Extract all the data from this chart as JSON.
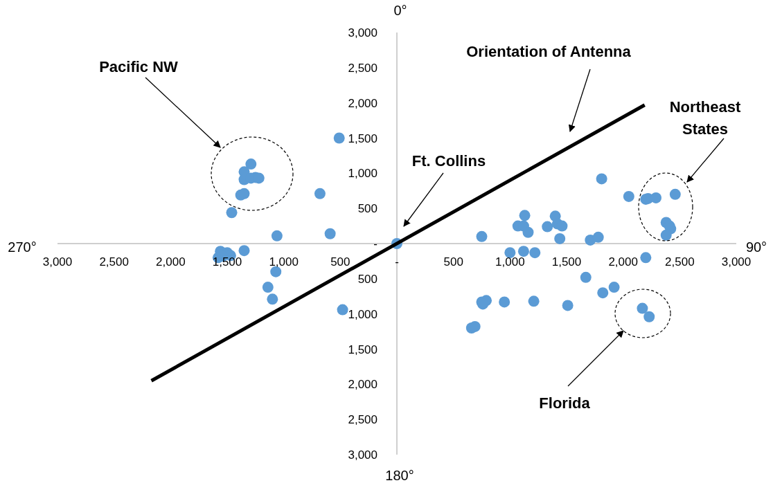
{
  "chart_data": {
    "type": "scatter",
    "xlim": [
      -3000,
      3000
    ],
    "ylim": [
      -3000,
      3000
    ],
    "xticks": [
      {
        "value": -3000,
        "label": "3,000"
      },
      {
        "value": -2500,
        "label": "2,500"
      },
      {
        "value": -2000,
        "label": "2,000"
      },
      {
        "value": -1500,
        "label": "1,500"
      },
      {
        "value": -1000,
        "label": "1,000"
      },
      {
        "value": -500,
        "label": "500"
      },
      {
        "value": 0,
        "label": "-"
      },
      500,
      {
        "value": 1000,
        "label": "1,000"
      },
      {
        "value": 1500,
        "label": "1,500"
      },
      {
        "value": 2000,
        "label": "2,000"
      },
      {
        "value": 2500,
        "label": "2,500"
      },
      {
        "value": 3000,
        "label": "3,000"
      }
    ],
    "yticks": [
      {
        "value": -3000,
        "label": "3,000"
      },
      {
        "value": -2500,
        "label": "2,500"
      },
      {
        "value": -2000,
        "label": "2,000"
      },
      {
        "value": -1500,
        "label": "1,500"
      },
      {
        "value": -1000,
        "label": "1,000"
      },
      {
        "value": -500,
        "label": "500"
      },
      {
        "value": 0,
        "label": "-"
      },
      500,
      {
        "value": 1000,
        "label": "1,000"
      },
      {
        "value": 1500,
        "label": "1,500"
      },
      {
        "value": 2000,
        "label": "2,000"
      },
      {
        "value": 2500,
        "label": "2,500"
      },
      {
        "value": 3000,
        "label": "3,000"
      }
    ],
    "series": [
      {
        "color": "#5b9bd5",
        "marker": "circle",
        "x": [
          -510,
          -1290,
          -1350,
          -1250,
          -1350,
          -1290,
          -1380,
          -1350,
          -1220,
          -1460,
          -680,
          -590,
          -1060,
          -1350,
          -1560,
          -1500,
          -1470,
          -1580,
          -1540,
          -1070,
          -1140,
          -1100,
          -480,
          0,
          1810,
          2050,
          2200,
          2220,
          2290,
          2460,
          2380,
          2410,
          2420,
          2380,
          1130,
          1070,
          1120,
          1160,
          1330,
          1400,
          1420,
          1460,
          1440,
          750,
          1710,
          1780,
          1000,
          1120,
          1220,
          2200,
          1670,
          1820,
          1920,
          750,
          790,
          760,
          950,
          1210,
          1510,
          2170,
          2230,
          660,
          690
        ],
        "values": [
          1500,
          1130,
          1020,
          940,
          910,
          930,
          690,
          710,
          930,
          440,
          710,
          140,
          110,
          -100,
          -110,
          -130,
          -170,
          -200,
          -180,
          -400,
          -620,
          -790,
          -940,
          0,
          920,
          670,
          630,
          640,
          650,
          700,
          300,
          250,
          210,
          120,
          400,
          250,
          250,
          160,
          240,
          390,
          280,
          250,
          70,
          100,
          50,
          90,
          -130,
          -110,
          -130,
          -200,
          -480,
          -700,
          -620,
          -830,
          -810,
          -860,
          -830,
          -820,
          -880,
          -920,
          -1040,
          -1200,
          -1180
        ]
      },
      {
        "type": "line",
        "marker": "none",
        "color": "#000000",
        "x": [
          -2170,
          2190
        ],
        "values": [
          -1950,
          1970
        ]
      }
    ],
    "annotations": [
      "Pacific NW",
      "Orientation of Antenna",
      "Northeast States",
      "Ft. Collins",
      "Florida",
      "0°",
      "90°",
      "180°",
      "270°"
    ]
  }
}
